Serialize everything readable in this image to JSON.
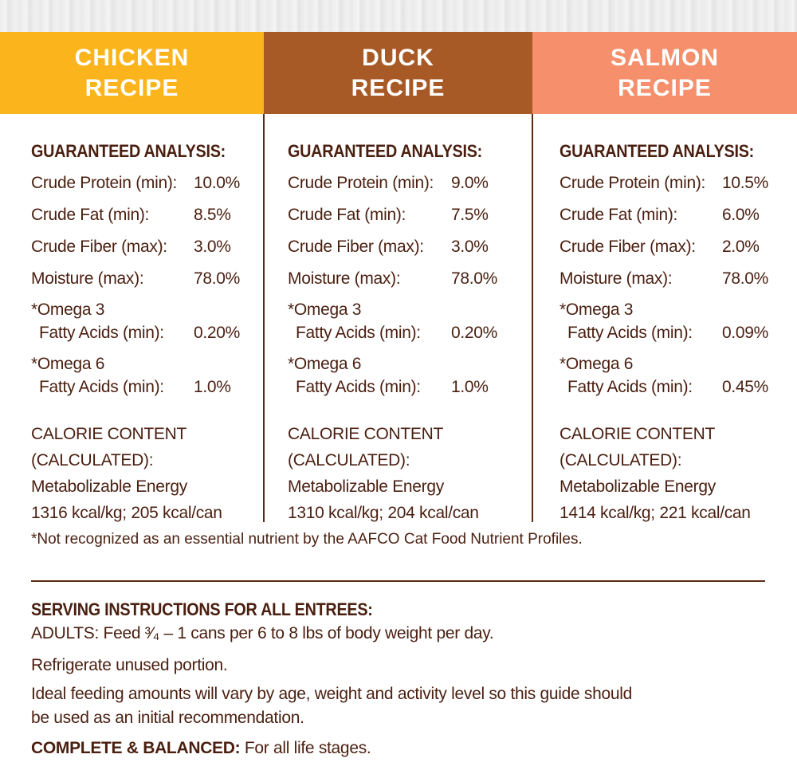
{
  "colors": {
    "chicken": "#fbb41b",
    "duck": "#a85a26",
    "salmon": "#f58f6c",
    "text": "#4a1f10"
  },
  "columns": [
    {
      "title1": "CHICKEN",
      "title2": "RECIPE",
      "heading": "GUARANTEED ANALYSIS:",
      "rows": [
        {
          "label": "Crude Protein (min):",
          "value": "10.0%"
        },
        {
          "label": "Crude Fat (min):",
          "value": "8.5%"
        },
        {
          "label": "Crude Fiber (max):",
          "value": "3.0%"
        },
        {
          "label": "Moisture (max):",
          "value": "78.0%"
        },
        {
          "label1": "*Omega 3",
          "label2": "Fatty Acids (min):",
          "value": "0.20%"
        },
        {
          "label1": "*Omega 6",
          "label2": "Fatty Acids (min):",
          "value": "1.0%"
        }
      ],
      "calorie": [
        "CALORIE CONTENT",
        "(CALCULATED):",
        "Metabolizable Energy",
        "1316 kcal/kg; 205 kcal/can"
      ]
    },
    {
      "title1": "DUCK",
      "title2": "RECIPE",
      "heading": "GUARANTEED ANALYSIS:",
      "rows": [
        {
          "label": "Crude Protein (min):",
          "value": "9.0%"
        },
        {
          "label": "Crude Fat (min):",
          "value": "7.5%"
        },
        {
          "label": "Crude Fiber (max):",
          "value": "3.0%"
        },
        {
          "label": "Moisture (max):",
          "value": "78.0%"
        },
        {
          "label1": "*Omega 3",
          "label2": "Fatty Acids (min):",
          "value": "0.20%"
        },
        {
          "label1": "*Omega 6",
          "label2": "Fatty Acids (min):",
          "value": "1.0%"
        }
      ],
      "calorie": [
        "CALORIE CONTENT",
        "(CALCULATED):",
        "Metabolizable Energy",
        "1310 kcal/kg; 204 kcal/can"
      ]
    },
    {
      "title1": "SALMON",
      "title2": "RECIPE",
      "heading": "GUARANTEED ANALYSIS:",
      "rows": [
        {
          "label": "Crude Protein (min):",
          "value": "10.5%"
        },
        {
          "label": "Crude Fat (min):",
          "value": "6.0%"
        },
        {
          "label": "Crude Fiber (max):",
          "value": "2.0%"
        },
        {
          "label": "Moisture (max):",
          "value": "78.0%"
        },
        {
          "label1": "*Omega 3",
          "label2": "Fatty Acids (min):",
          "value": "0.09%"
        },
        {
          "label1": "*Omega 6",
          "label2": "Fatty Acids (min):",
          "value": "0.45%"
        }
      ],
      "calorie": [
        "CALORIE CONTENT",
        "(CALCULATED):",
        "Metabolizable Energy",
        "1414 kcal/kg; 221 kcal/can"
      ]
    }
  ],
  "footnote": "*Not recognized as an essential nutrient by the AAFCO Cat Food Nutrient Profiles.",
  "serving": {
    "heading": "SERVING INSTRUCTIONS FOR ALL ENTREES:",
    "adults": "ADULTS: Feed ³⁄₄ – 1 cans per 6 to 8 lbs of body weight per day.",
    "refrigerate": "Refrigerate unused portion.",
    "ideal1": "Ideal feeding amounts will vary by age, weight and activity level so this guide should",
    "ideal2": "be used as an initial recommendation.",
    "complete_label": "COMPLETE & BALANCED:",
    "complete_text": " For all life stages."
  }
}
